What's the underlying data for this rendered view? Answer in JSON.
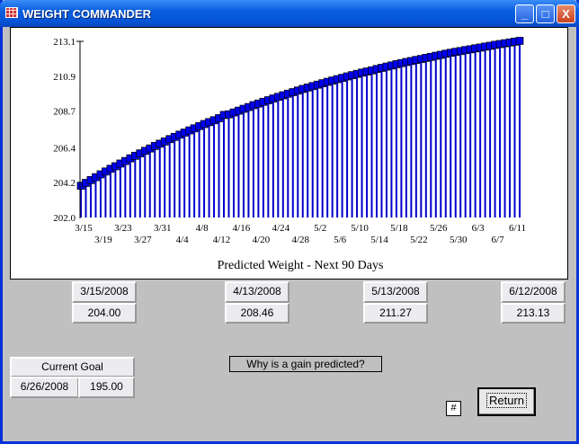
{
  "window": {
    "title": "WEIGHT COMMANDER",
    "minimize": "_",
    "maximize": "□",
    "close": "X"
  },
  "chart_data": {
    "type": "bar",
    "title": "Predicted Weight - Next 90 Days",
    "xlabel": "",
    "ylabel": "",
    "ylim": [
      202.0,
      213.1
    ],
    "yticks": [
      "202.0",
      "204.2",
      "206.4",
      "208.7",
      "210.9",
      "213.1"
    ],
    "xtick_labels": [
      "3/15",
      "3/19",
      "3/23",
      "3/27",
      "3/31",
      "4/4",
      "4/8",
      "4/12",
      "4/16",
      "4/20",
      "4/24",
      "4/28",
      "5/2",
      "5/6",
      "5/10",
      "5/14",
      "5/18",
      "5/22",
      "5/26",
      "5/30",
      "6/3",
      "6/7",
      "6/11"
    ],
    "x_start": "3/15",
    "days": 90,
    "tick_every_days": 4,
    "bar_color": "#0000cc",
    "marker_color": "#0000ee",
    "marker": "square",
    "values": [
      204.0,
      204.18,
      204.36,
      204.54,
      204.72,
      204.9,
      205.07,
      205.23,
      205.4,
      205.56,
      205.73,
      205.89,
      206.04,
      206.2,
      206.35,
      206.51,
      206.65,
      206.79,
      206.94,
      207.08,
      207.22,
      207.35,
      207.49,
      207.62,
      207.76,
      207.89,
      208.01,
      208.13,
      208.26,
      208.46,
      208.5,
      208.62,
      208.73,
      208.85,
      208.96,
      209.08,
      209.18,
      209.29,
      209.39,
      209.5,
      209.6,
      209.7,
      209.8,
      209.9,
      210.0,
      210.1,
      210.19,
      210.28,
      210.37,
      210.46,
      210.55,
      210.63,
      210.72,
      210.8,
      210.89,
      210.97,
      211.05,
      211.13,
      211.2,
      211.27,
      211.36,
      211.43,
      211.51,
      211.58,
      211.66,
      211.73,
      211.8,
      211.86,
      211.93,
      211.99,
      212.06,
      212.12,
      212.19,
      212.25,
      212.32,
      212.38,
      212.44,
      212.49,
      212.55,
      212.6,
      212.66,
      212.71,
      212.77,
      212.82,
      212.88,
      212.93,
      212.98,
      213.03,
      213.08,
      213.13
    ]
  },
  "milestones": [
    {
      "date": "3/15/2008",
      "weight": "204.00"
    },
    {
      "date": "4/13/2008",
      "weight": "208.46"
    },
    {
      "date": "5/13/2008",
      "weight": "211.27"
    },
    {
      "date": "6/12/2008",
      "weight": "213.13"
    }
  ],
  "goal": {
    "label": "Current Goal",
    "date": "6/26/2008",
    "weight": "195.00"
  },
  "buttons": {
    "why": "Why is a gain predicted?",
    "hash": "#",
    "return": "Return"
  }
}
